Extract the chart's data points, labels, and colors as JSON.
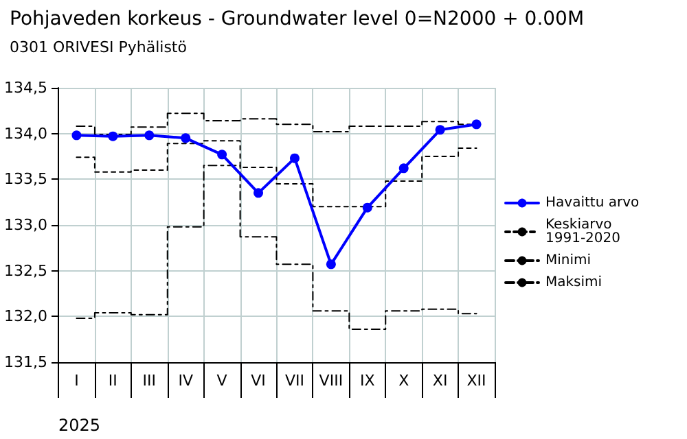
{
  "chart_data": {
    "type": "line",
    "title": "Pohjaveden korkeus - Groundwater level 0=N2000 + 0.00M",
    "subtitle": "0301 ORIVESI Pyhälistö",
    "xlabel": "2025",
    "categories": [
      "I",
      "II",
      "III",
      "IV",
      "V",
      "VI",
      "VII",
      "VIII",
      "IX",
      "X",
      "XI",
      "XII"
    ],
    "series": [
      {
        "name": "Havaittu arvo",
        "color": "#0000ff",
        "marker": "circle",
        "line_style": "solid",
        "values": [
          133.98,
          133.97,
          133.98,
          133.95,
          133.77,
          133.35,
          133.73,
          132.57,
          133.19,
          133.62,
          134.04,
          134.1
        ]
      },
      {
        "name": "Keskiarvo 1991-2020",
        "type": "step",
        "color": "#000000",
        "marker": "none",
        "line_style": "dotted",
        "values": [
          133.74,
          133.58,
          133.6,
          133.89,
          133.92,
          133.63,
          133.45,
          133.2,
          133.2,
          133.48,
          133.75,
          133.84
        ]
      },
      {
        "name": "Minimi",
        "type": "step",
        "color": "#000000",
        "marker": "none",
        "line_style": "dashed",
        "values": [
          131.98,
          132.04,
          132.02,
          132.98,
          133.65,
          132.87,
          132.57,
          132.06,
          131.86,
          132.06,
          132.08,
          132.03
        ]
      },
      {
        "name": "Maksimi",
        "type": "step",
        "color": "#000000",
        "marker": "none",
        "line_style": "dashed",
        "values": [
          134.08,
          133.99,
          134.07,
          134.22,
          134.14,
          134.16,
          134.1,
          134.02,
          134.08,
          134.08,
          134.13,
          134.1
        ]
      }
    ],
    "ylim": [
      131.5,
      134.5
    ],
    "yticks": [
      {
        "value": 131.5,
        "label": "131,5"
      },
      {
        "value": 132,
        "label": "132,0"
      },
      {
        "value": 132.5,
        "label": "132,5"
      },
      {
        "value": 133,
        "label": "133,0"
      },
      {
        "value": 133.5,
        "label": "133,5"
      },
      {
        "value": 134,
        "label": "134,0"
      },
      {
        "value": 134.5,
        "label": "134,5"
      }
    ],
    "grid": true,
    "legend": "right"
  }
}
